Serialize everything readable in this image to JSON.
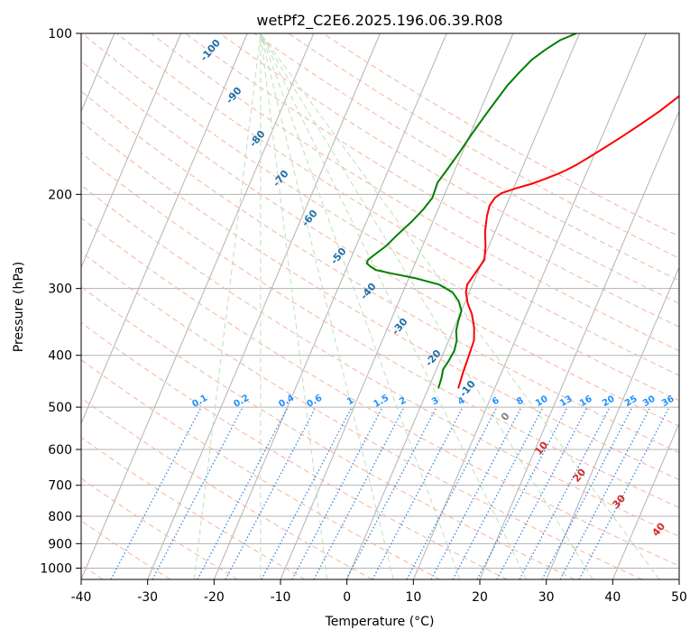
{
  "chart_data": {
    "type": "line",
    "title": "wetPf2_C2E6.2025.196.06.39.R08",
    "xlabel": "Temperature (°C)",
    "ylabel": "Pressure (hPa)",
    "xlim": [
      -40,
      50
    ],
    "ylim": [
      1050,
      100
    ],
    "y_scale": "log",
    "x_ticks": [
      -40,
      -30,
      -20,
      -10,
      0,
      10,
      20,
      30,
      40,
      50
    ],
    "y_ticks": [
      100,
      200,
      300,
      400,
      500,
      600,
      700,
      800,
      900,
      1000
    ],
    "grid": true,
    "series": [
      {
        "role": "temperature",
        "color": "#ff0000",
        "points": [
          [
            4.5,
            460
          ],
          [
            4.2,
            430
          ],
          [
            4.0,
            400
          ],
          [
            3.8,
            375
          ],
          [
            3.0,
            355
          ],
          [
            1.8,
            335
          ],
          [
            0.5,
            320
          ],
          [
            -0.5,
            305
          ],
          [
            -0.8,
            295
          ],
          [
            -0.3,
            280
          ],
          [
            0.2,
            265
          ],
          [
            -0.5,
            250
          ],
          [
            -1.5,
            235
          ],
          [
            -2.2,
            220
          ],
          [
            -2.5,
            210
          ],
          [
            -2.2,
            203
          ],
          [
            -1.5,
            199
          ],
          [
            0.3,
            195
          ],
          [
            2.5,
            191
          ],
          [
            4.2,
            187
          ],
          [
            5.8,
            183
          ],
          [
            6.8,
            180
          ],
          [
            8.0,
            176
          ],
          [
            9.5,
            170
          ],
          [
            11.0,
            164
          ],
          [
            13.0,
            156
          ],
          [
            15.0,
            148
          ],
          [
            17.0,
            140
          ],
          [
            18.8,
            132
          ],
          [
            20.2,
            125
          ],
          [
            21.8,
            118
          ],
          [
            22.5,
            112
          ],
          [
            22.5,
            105
          ],
          [
            22.3,
            100
          ]
        ]
      },
      {
        "role": "dewpoint",
        "color": "#008000",
        "points": [
          [
            1.5,
            460
          ],
          [
            1.3,
            440
          ],
          [
            1.0,
            425
          ],
          [
            1.3,
            410
          ],
          [
            1.5,
            392
          ],
          [
            1.2,
            375
          ],
          [
            0.5,
            360
          ],
          [
            0.2,
            345
          ],
          [
            0.0,
            330
          ],
          [
            -1.0,
            317
          ],
          [
            -2.5,
            305
          ],
          [
            -5.0,
            295
          ],
          [
            -9.0,
            287
          ],
          [
            -13.0,
            281
          ],
          [
            -15.5,
            277
          ],
          [
            -16.5,
            273
          ],
          [
            -17.3,
            269
          ],
          [
            -17.3,
            265
          ],
          [
            -16.5,
            258
          ],
          [
            -15.5,
            250
          ],
          [
            -14.5,
            238
          ],
          [
            -13.2,
            225
          ],
          [
            -12.2,
            213
          ],
          [
            -11.6,
            203
          ],
          [
            -11.8,
            190
          ],
          [
            -11.2,
            180
          ],
          [
            -10.5,
            168
          ],
          [
            -9.8,
            155
          ],
          [
            -9.0,
            143
          ],
          [
            -8.2,
            133
          ],
          [
            -7.5,
            125
          ],
          [
            -6.5,
            118
          ],
          [
            -5.5,
            112
          ],
          [
            -4.0,
            107
          ],
          [
            -2.5,
            103
          ],
          [
            -0.5,
            100
          ]
        ]
      }
    ],
    "dry_adiabat_labels": [
      "-100",
      "-90",
      "-80",
      "-70",
      "-60",
      "-50",
      "-40",
      "-30",
      "-20",
      "-10"
    ],
    "mixing_ratio_labels": [
      "0.1",
      "0.2",
      "0.4",
      "0.6",
      "1",
      "1.5",
      "2",
      "3",
      "4",
      "6",
      "8",
      "10",
      "13",
      "16",
      "20",
      "25",
      "30",
      "36"
    ],
    "moist_adiabat_labels": [
      "0",
      "10",
      "20",
      "30",
      "40"
    ],
    "colors": {
      "isotherm": "#b3b3b3",
      "isobar": "#b3b3b3",
      "dry_adiabat": "#f4b09a",
      "moist_adiabat": "#b8dcb8",
      "mixing_ratio": "#1f77d4",
      "dry_label": "#1f6fa8",
      "mixing_label": "#1e90ff",
      "moist_label": "#d62728",
      "zero_label": "#808080"
    }
  }
}
